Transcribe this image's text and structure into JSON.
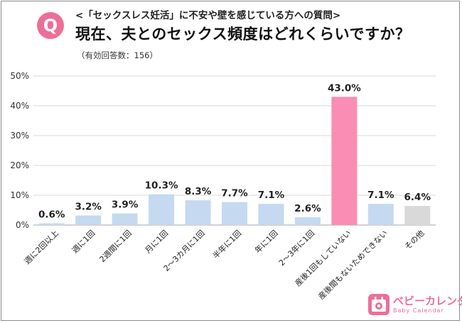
{
  "header": {
    "badge": "Q",
    "subtitle": "<「セックスレス妊活」に不安や壁を感じている方への質問>",
    "title": "現在、夫とのセックス頻度はどれくらいですか？",
    "respondents": "（有効回答数：156）"
  },
  "chart_data": {
    "type": "bar",
    "categories": [
      "週に2回以上",
      "週に1回",
      "2週間に1回",
      "月に1回",
      "2〜3カ月に1回",
      "半年に1回",
      "年に1回",
      "2〜3年に1回",
      "産後1回もしていない",
      "産後間もないためできない",
      "その他"
    ],
    "values": [
      0.6,
      3.2,
      3.9,
      10.3,
      8.3,
      7.7,
      7.1,
      2.6,
      43.0,
      7.1,
      6.4
    ],
    "value_labels": [
      "0.6%",
      "3.2%",
      "3.9%",
      "10.3%",
      "8.3%",
      "7.7%",
      "7.1%",
      "2.6%",
      "43.0%",
      "7.1%",
      "6.4%"
    ],
    "y_ticks": [
      "0%",
      "10%",
      "20%",
      "30%",
      "40%",
      "50%"
    ],
    "ylim": [
      0,
      50
    ],
    "grid": true,
    "colors": {
      "default": "#c5d9f1",
      "highlight": "#f98db3",
      "other": "#d9d9d9",
      "highlight_index": 8,
      "other_index": 10
    },
    "xlabel": "",
    "ylabel": ""
  },
  "logo": {
    "name": "ベビーカレンダー",
    "en": "Baby Calendar",
    "icon": "calendar-baby-icon"
  }
}
